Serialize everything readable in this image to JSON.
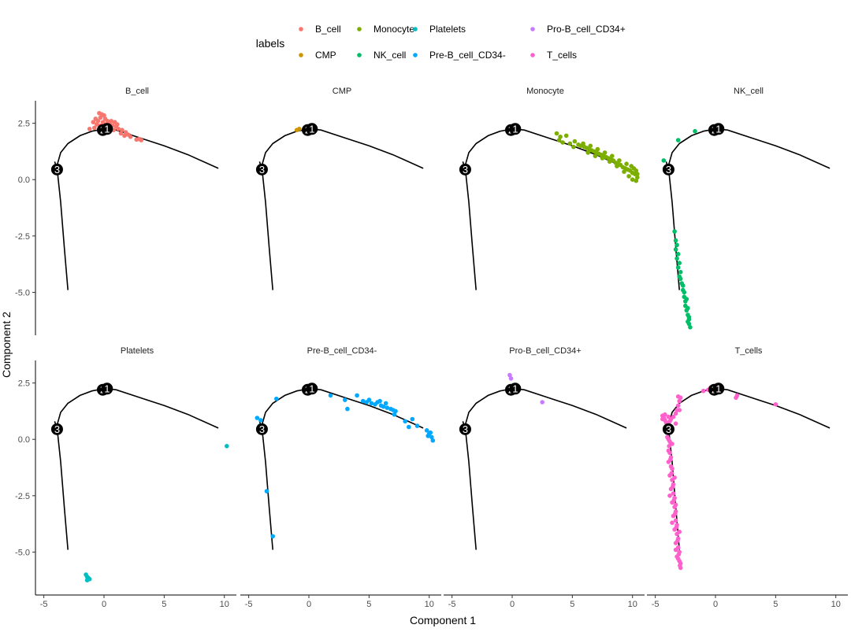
{
  "chart_data": {
    "type": "scatter",
    "xlabel": "Component 1",
    "ylabel": "Component 2",
    "x_ticks": [
      -5,
      0,
      5,
      10
    ],
    "y_ticks": [
      2.5,
      0.0,
      -2.5,
      -5.0
    ],
    "y_tick_labels": [
      "2.5",
      "0.0",
      "-2.5",
      "-5.0"
    ],
    "xlim": [
      -5.5,
      11
    ],
    "ylim": [
      -6.8,
      3.5
    ],
    "grid": false,
    "legend": {
      "title": "labels",
      "placement": "top",
      "entries": [
        {
          "name": "B_cell",
          "color": "#F8766D"
        },
        {
          "name": "CMP",
          "color": "#CD9600"
        },
        {
          "name": "Monocyte",
          "color": "#7CAE00"
        },
        {
          "name": "NK_cell",
          "color": "#00BE67"
        },
        {
          "name": "Platelets",
          "color": "#00BFC4"
        },
        {
          "name": "Pre-B_cell_CD34-",
          "color": "#00A9FF"
        },
        {
          "name": "Pro-B_cell_CD34+",
          "color": "#C77CFF"
        },
        {
          "name": "T_cells",
          "color": "#FF61CC"
        }
      ]
    },
    "trajectory": {
      "path": [
        [
          -3.0,
          -4.9
        ],
        [
          -3.3,
          -3.0
        ],
        [
          -3.6,
          -1.0
        ],
        [
          -3.85,
          0.25
        ],
        [
          -4.0,
          0.45
        ],
        [
          -3.6,
          1.2
        ],
        [
          -3.0,
          1.6
        ],
        [
          -2.0,
          1.95
        ],
        [
          -1.0,
          2.15
        ],
        [
          0.0,
          2.25
        ],
        [
          1.0,
          2.2
        ],
        [
          3.0,
          1.85
        ],
        [
          5.0,
          1.5
        ],
        [
          7.0,
          1.1
        ],
        [
          9.5,
          0.5
        ]
      ],
      "branch": [
        [
          -4.1,
          0.8
        ],
        [
          -3.9,
          0.45
        ]
      ],
      "nodes": [
        {
          "label": "3",
          "x": -3.9,
          "y": 0.45
        },
        {
          "label": "2",
          "x": -0.1,
          "y": 2.2
        },
        {
          "label": "1",
          "x": 0.25,
          "y": 2.25
        }
      ]
    },
    "panels": [
      {
        "title": "B_cell",
        "color": "#F8766D",
        "points": [
          [
            -0.4,
            2.95
          ],
          [
            -0.2,
            2.9
          ],
          [
            0.0,
            2.85
          ],
          [
            -0.3,
            2.75
          ],
          [
            0.1,
            2.7
          ],
          [
            -0.5,
            2.6
          ],
          [
            0.3,
            2.6
          ],
          [
            -0.1,
            2.55
          ],
          [
            0.5,
            2.5
          ],
          [
            -0.6,
            2.45
          ],
          [
            0.2,
            2.45
          ],
          [
            -0.3,
            2.4
          ],
          [
            0.7,
            2.4
          ],
          [
            1.0,
            2.35
          ],
          [
            -0.8,
            2.3
          ],
          [
            0.4,
            2.3
          ],
          [
            -1.2,
            2.25
          ],
          [
            1.2,
            2.25
          ],
          [
            1.5,
            2.2
          ],
          [
            -0.2,
            2.2
          ],
          [
            0.8,
            2.2
          ],
          [
            1.8,
            2.1
          ],
          [
            1.4,
            2.05
          ],
          [
            2.0,
            2.0
          ],
          [
            1.7,
            1.95
          ],
          [
            2.2,
            1.9
          ],
          [
            0.6,
            2.6
          ],
          [
            -0.7,
            2.7
          ],
          [
            0.9,
            2.55
          ],
          [
            1.1,
            2.45
          ],
          [
            -0.9,
            2.55
          ],
          [
            2.9,
            1.8
          ],
          [
            3.1,
            1.75
          ],
          [
            2.7,
            1.78
          ]
        ]
      },
      {
        "title": "CMP",
        "color": "#CD9600",
        "points": [
          [
            -1.0,
            2.2
          ],
          [
            -0.8,
            2.25
          ]
        ]
      },
      {
        "title": "Monocyte",
        "color": "#7CAE00",
        "points": [
          [
            3.7,
            2.05
          ],
          [
            4.0,
            1.9
          ],
          [
            3.9,
            1.75
          ],
          [
            4.2,
            1.65
          ],
          [
            4.5,
            1.95
          ],
          [
            4.8,
            1.6
          ],
          [
            5.2,
            1.7
          ],
          [
            5.5,
            1.55
          ],
          [
            5.7,
            1.5
          ],
          [
            6.0,
            1.45
          ],
          [
            6.2,
            1.4
          ],
          [
            6.4,
            1.35
          ],
          [
            6.6,
            1.3
          ],
          [
            6.8,
            1.25
          ],
          [
            7.0,
            1.2
          ],
          [
            7.2,
            1.15
          ],
          [
            7.4,
            1.1
          ],
          [
            7.6,
            1.05
          ],
          [
            7.8,
            1.0
          ],
          [
            8.0,
            0.95
          ],
          [
            8.2,
            0.9
          ],
          [
            8.4,
            0.85
          ],
          [
            8.6,
            0.75
          ],
          [
            8.8,
            0.7
          ],
          [
            9.0,
            0.65
          ],
          [
            9.2,
            0.55
          ],
          [
            9.4,
            0.5
          ],
          [
            9.6,
            0.45
          ],
          [
            9.8,
            0.4
          ],
          [
            10.0,
            0.3
          ],
          [
            10.2,
            0.25
          ],
          [
            10.4,
            0.1
          ],
          [
            10.3,
            -0.05
          ],
          [
            10.0,
            0.0
          ],
          [
            9.7,
            0.15
          ],
          [
            9.9,
            0.6
          ],
          [
            10.1,
            0.5
          ],
          [
            10.3,
            0.4
          ],
          [
            5.9,
            1.6
          ],
          [
            6.5,
            1.5
          ],
          [
            7.1,
            1.35
          ],
          [
            7.7,
            1.2
          ],
          [
            8.3,
            1.05
          ],
          [
            8.9,
            0.85
          ],
          [
            9.5,
            0.7
          ],
          [
            6.3,
            1.2
          ],
          [
            6.9,
            1.05
          ],
          [
            7.5,
            0.95
          ],
          [
            8.1,
            0.8
          ],
          [
            8.7,
            0.6
          ],
          [
            9.3,
            0.35
          ],
          [
            5.1,
            1.45
          ],
          [
            10.4,
            0.25
          ]
        ]
      },
      {
        "title": "NK_cell",
        "color": "#00BE67",
        "points": [
          [
            -4.3,
            0.85
          ],
          [
            -3.1,
            1.75
          ],
          [
            -1.7,
            2.15
          ],
          [
            -3.4,
            -2.3
          ],
          [
            -3.3,
            -2.7
          ],
          [
            -3.3,
            -3.1
          ],
          [
            -3.2,
            -3.5
          ],
          [
            -3.1,
            -3.9
          ],
          [
            -3.0,
            -4.3
          ],
          [
            -2.8,
            -4.6
          ],
          [
            -2.7,
            -4.9
          ],
          [
            -2.6,
            -5.2
          ],
          [
            -2.5,
            -5.4
          ],
          [
            -2.5,
            -5.6
          ],
          [
            -2.4,
            -5.8
          ],
          [
            -2.3,
            -6.0
          ],
          [
            -2.2,
            -6.2
          ],
          [
            -2.2,
            -6.4
          ],
          [
            -2.1,
            -6.55
          ],
          [
            -3.2,
            -2.9
          ],
          [
            -3.0,
            -3.7
          ],
          [
            -2.9,
            -4.1
          ],
          [
            -2.7,
            -4.7
          ],
          [
            -2.4,
            -5.3
          ],
          [
            -2.3,
            -5.7
          ],
          [
            -2.2,
            -6.1
          ],
          [
            -2.6,
            -5.0
          ],
          [
            -3.1,
            -3.3
          ],
          [
            -2.9,
            -4.4
          ],
          [
            -2.3,
            -6.3
          ]
        ]
      },
      {
        "title": "Platelets",
        "color": "#00BFC4",
        "points": [
          [
            10.2,
            -0.3
          ],
          [
            -1.5,
            -6.0
          ],
          [
            -1.4,
            -6.1
          ],
          [
            -1.3,
            -6.15
          ],
          [
            -1.2,
            -6.2
          ],
          [
            -1.4,
            -6.25
          ]
        ]
      },
      {
        "title": "Pre-B_cell_CD34-",
        "color": "#00A9FF",
        "points": [
          [
            -4.3,
            0.95
          ],
          [
            -4.0,
            0.85
          ],
          [
            -4.1,
            0.6
          ],
          [
            -2.7,
            1.8
          ],
          [
            -3.5,
            -2.3
          ],
          [
            -3.0,
            -4.3
          ],
          [
            1.8,
            1.95
          ],
          [
            3.0,
            1.75
          ],
          [
            3.2,
            1.35
          ],
          [
            4.0,
            1.95
          ],
          [
            4.5,
            1.7
          ],
          [
            5.0,
            1.75
          ],
          [
            5.2,
            1.6
          ],
          [
            5.5,
            1.55
          ],
          [
            5.7,
            1.65
          ],
          [
            6.0,
            1.5
          ],
          [
            6.2,
            1.45
          ],
          [
            6.5,
            1.4
          ],
          [
            6.8,
            1.35
          ],
          [
            7.0,
            1.3
          ],
          [
            7.2,
            1.25
          ],
          [
            8.0,
            0.8
          ],
          [
            8.3,
            0.55
          ],
          [
            8.6,
            0.9
          ],
          [
            9.0,
            0.6
          ],
          [
            9.8,
            0.4
          ],
          [
            10.0,
            0.25
          ],
          [
            10.2,
            0.1
          ],
          [
            10.3,
            -0.05
          ],
          [
            10.1,
            0.3
          ],
          [
            9.9,
            0.15
          ],
          [
            6.4,
            1.6
          ],
          [
            5.9,
            1.7
          ],
          [
            4.8,
            1.65
          ],
          [
            7.1,
            1.1
          ]
        ]
      },
      {
        "title": "Pro-B_cell_CD34+",
        "color": "#C77CFF",
        "points": [
          [
            -0.2,
            2.85
          ],
          [
            -0.1,
            2.7
          ],
          [
            2.5,
            1.65
          ]
        ]
      },
      {
        "title": "T_cells",
        "color": "#FF61CC",
        "points": [
          [
            -4.4,
            1.05
          ],
          [
            -4.3,
            0.95
          ],
          [
            -4.2,
            0.85
          ],
          [
            -4.1,
            0.75
          ],
          [
            -4.0,
            0.65
          ],
          [
            -4.4,
            0.9
          ],
          [
            -4.2,
            1.1
          ],
          [
            -3.9,
            1.0
          ],
          [
            -3.8,
            0.8
          ],
          [
            -4.1,
            0.55
          ],
          [
            -3.7,
            0.9
          ],
          [
            -3.5,
            1.0
          ],
          [
            -3.3,
            1.15
          ],
          [
            -3.2,
            1.3
          ],
          [
            -3.1,
            1.5
          ],
          [
            -3.0,
            1.7
          ],
          [
            -3.1,
            1.9
          ],
          [
            -2.9,
            1.85
          ],
          [
            -3.0,
            1.3
          ],
          [
            -3.3,
            0.7
          ],
          [
            -0.6,
            2.2
          ],
          [
            -0.4,
            2.3
          ],
          [
            -0.2,
            2.25
          ],
          [
            -1.0,
            2.15
          ],
          [
            1.8,
            1.95
          ],
          [
            1.7,
            1.85
          ],
          [
            5.0,
            1.55
          ],
          [
            -3.95,
            0.3
          ],
          [
            -3.9,
            0.0
          ],
          [
            -3.85,
            -0.3
          ],
          [
            -3.8,
            -0.6
          ],
          [
            -3.75,
            -0.9
          ],
          [
            -3.7,
            -1.2
          ],
          [
            -3.65,
            -1.5
          ],
          [
            -3.6,
            -1.8
          ],
          [
            -3.55,
            -2.1
          ],
          [
            -3.5,
            -2.4
          ],
          [
            -3.45,
            -2.7
          ],
          [
            -3.4,
            -3.0
          ],
          [
            -3.35,
            -3.3
          ],
          [
            -3.3,
            -3.6
          ],
          [
            -3.25,
            -3.9
          ],
          [
            -3.2,
            -4.2
          ],
          [
            -3.15,
            -4.5
          ],
          [
            -3.1,
            -4.8
          ],
          [
            -3.05,
            -5.1
          ],
          [
            -3.0,
            -5.4
          ],
          [
            -2.95,
            -5.6
          ],
          [
            -2.9,
            -5.7
          ],
          [
            -3.8,
            -0.1
          ],
          [
            -4.0,
            0.1
          ],
          [
            -3.7,
            -0.8
          ],
          [
            -3.9,
            -0.5
          ],
          [
            -3.6,
            -1.3
          ],
          [
            -3.8,
            -1.6
          ],
          [
            -3.5,
            -2.0
          ],
          [
            -3.7,
            -2.2
          ],
          [
            -3.4,
            -2.6
          ],
          [
            -3.6,
            -2.8
          ],
          [
            -3.3,
            -3.2
          ],
          [
            -3.5,
            -3.4
          ],
          [
            -3.2,
            -3.8
          ],
          [
            -3.4,
            -4.0
          ],
          [
            -3.1,
            -4.4
          ],
          [
            -3.3,
            -4.6
          ],
          [
            -3.0,
            -5.0
          ],
          [
            -3.2,
            -5.2
          ],
          [
            -2.9,
            -5.5
          ],
          [
            -3.6,
            -0.2
          ],
          [
            -3.9,
            -1.0
          ],
          [
            -3.4,
            -1.7
          ],
          [
            -3.8,
            -2.5
          ],
          [
            -3.3,
            -2.9
          ],
          [
            -3.6,
            -3.7
          ],
          [
            -3.0,
            -4.1
          ],
          [
            -3.3,
            -4.9
          ],
          [
            -3.1,
            -5.3
          ]
        ]
      }
    ]
  }
}
